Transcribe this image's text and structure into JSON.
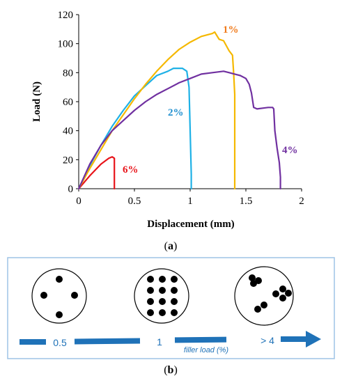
{
  "chart_data": {
    "type": "line",
    "title": "",
    "xlabel": "Displacement (mm)",
    "ylabel": "Load (N)",
    "xlim": [
      0,
      2
    ],
    "ylim": [
      0,
      120
    ],
    "x_ticks": [
      "0",
      "0.5",
      "1",
      "1.5",
      "2"
    ],
    "y_ticks": [
      "0",
      "20",
      "40",
      "60",
      "80",
      "100",
      "120"
    ],
    "grid": false,
    "legend": "none",
    "series": [
      {
        "name": "6%",
        "color": "#e8141a",
        "x": [
          0,
          0.1,
          0.2,
          0.27,
          0.3,
          0.32,
          0.32
        ],
        "y": [
          0,
          9,
          17,
          21,
          22,
          21,
          0
        ]
      },
      {
        "name": "2%",
        "color": "#1fb1e6",
        "x": [
          0,
          0.1,
          0.2,
          0.3,
          0.4,
          0.5,
          0.6,
          0.7,
          0.8,
          0.85,
          0.93,
          0.97,
          0.99,
          1.0,
          1.01,
          1.01
        ],
        "y": [
          0,
          16,
          30,
          43,
          54,
          64,
          71,
          78,
          81,
          83,
          83,
          81,
          70,
          40,
          10,
          0
        ]
      },
      {
        "name": "1%",
        "color": "#f5b800",
        "x": [
          0,
          0.1,
          0.2,
          0.3,
          0.4,
          0.5,
          0.6,
          0.7,
          0.8,
          0.9,
          1.0,
          1.1,
          1.2,
          1.22,
          1.26,
          1.3,
          1.35,
          1.38,
          1.39,
          1.4,
          1.4
        ],
        "y": [
          0,
          14,
          27,
          40,
          51,
          62,
          72,
          81,
          89,
          96,
          101,
          105,
          107,
          108,
          103,
          102,
          95,
          92,
          80,
          65,
          0
        ]
      },
      {
        "name": "4%",
        "color": "#7030a0",
        "x": [
          0,
          0.1,
          0.2,
          0.3,
          0.4,
          0.5,
          0.6,
          0.7,
          0.8,
          0.9,
          1.0,
          1.1,
          1.2,
          1.3,
          1.35,
          1.4,
          1.45,
          1.5,
          1.53,
          1.55,
          1.57,
          1.6,
          1.7,
          1.74,
          1.75,
          1.76,
          1.78,
          1.8,
          1.81,
          1.81
        ],
        "y": [
          0,
          17,
          30,
          40,
          47,
          54,
          60,
          65,
          69,
          73,
          76,
          79,
          80,
          81,
          80,
          79,
          78,
          76,
          72,
          66,
          56,
          55,
          56,
          56,
          55,
          40,
          28,
          18,
          8,
          0
        ]
      }
    ]
  },
  "panel_a_label": "(a)",
  "panel_b_label": "(b)",
  "schematic": {
    "labels": [
      {
        "text": "0.5"
      },
      {
        "text": "1"
      },
      {
        "text": "filler load (%)"
      },
      {
        "text": "> 4"
      }
    ],
    "circles": [
      {
        "name": "0.5%"
      },
      {
        "name": "1%"
      },
      {
        "name": ">4%"
      }
    ],
    "arrow_color": "#1f72b8",
    "frame_color": "#9dc3e6"
  }
}
